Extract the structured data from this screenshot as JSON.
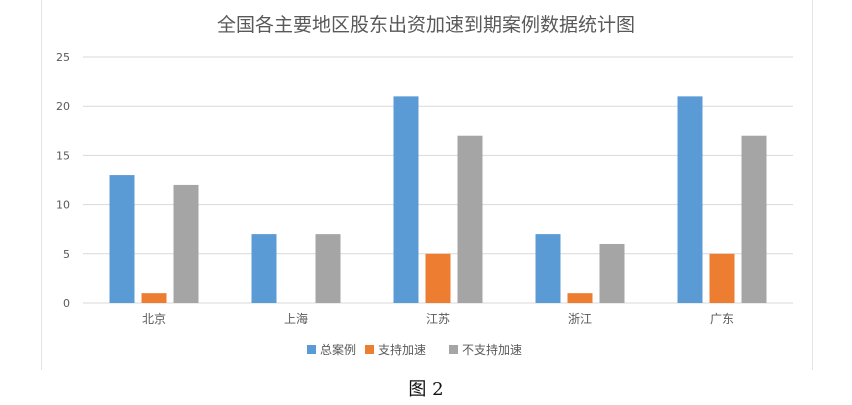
{
  "figure_caption": "图 2",
  "colors": {
    "总案例": "#5B9BD5",
    "支持加速": "#ED7D31",
    "不支持加速": "#A5A5A5",
    "grid": "#d9d9d9",
    "text": "#595959"
  },
  "chart_data": {
    "type": "bar",
    "title": "全国各主要地区股东出资加速到期案例数据统计图",
    "xlabel": "",
    "ylabel": "",
    "categories": [
      "北京",
      "上海",
      "江苏",
      "浙江",
      "广东"
    ],
    "series": [
      {
        "name": "总案例",
        "values": [
          13,
          7,
          21,
          7,
          21
        ]
      },
      {
        "name": "支持加速",
        "values": [
          1,
          0,
          5,
          1,
          5
        ]
      },
      {
        "name": "不支持加速",
        "values": [
          12,
          7,
          17,
          6,
          17
        ]
      }
    ],
    "ylim": [
      0,
      25
    ],
    "yticks": [
      0,
      5,
      10,
      15,
      20,
      25
    ],
    "grid": true,
    "legend": "bottom"
  }
}
